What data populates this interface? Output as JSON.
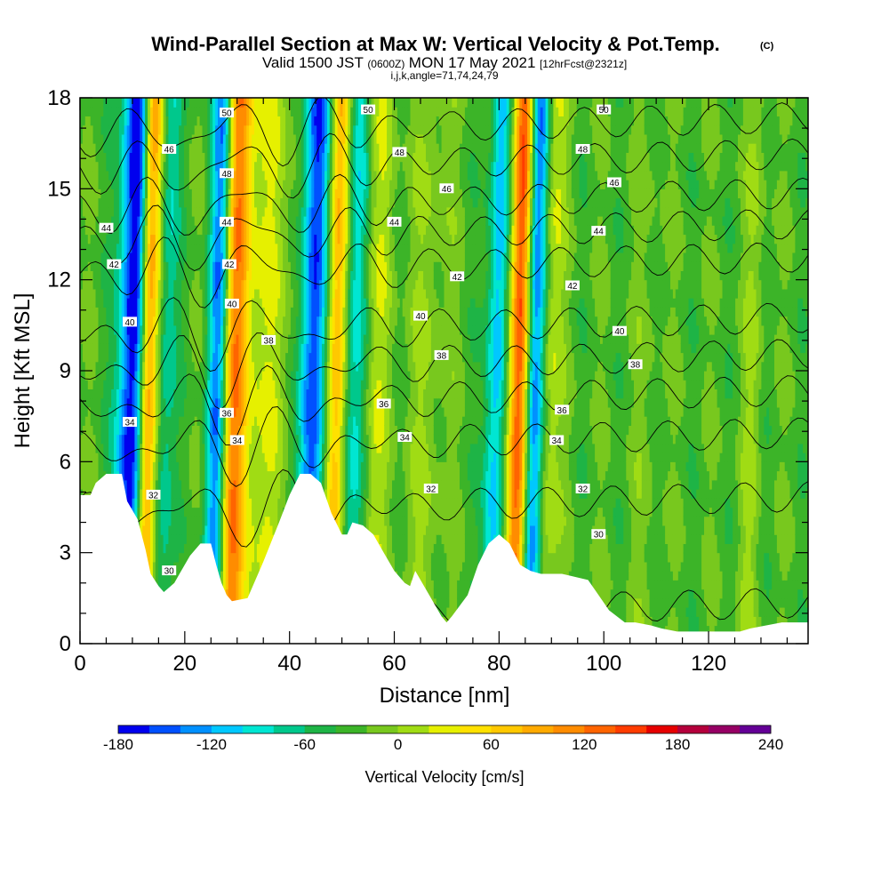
{
  "chart_data": {
    "type": "heatmap",
    "title": {
      "main": "Wind-Parallel Section at Max W: Vertical Velocity & Pot.Temp.",
      "copyright": "(C)",
      "line2_prefix": "Valid 1500 JST",
      "line2_zulu": "(0600Z)",
      "line2_date": "MON 17 May 2021",
      "line2_fcst": "[12hrFcst@2321z]",
      "line3": "i,j,k,angle=71,74,24,79"
    },
    "xlabel": "Distance [nm]",
    "ylabel": "Height [Kft MSL]",
    "xlim": [
      0,
      139
    ],
    "ylim": [
      0,
      18
    ],
    "x_ticks": [
      0,
      20,
      40,
      60,
      80,
      100,
      120
    ],
    "y_ticks": [
      0,
      3,
      6,
      9,
      12,
      15,
      18
    ],
    "colorbar": {
      "title": "Vertical Velocity [cm/s]",
      "min": -180,
      "max": 240,
      "step": 20,
      "tick_values": [
        -180,
        -120,
        -60,
        0,
        60,
        120,
        180,
        240
      ],
      "colors": [
        "#0000ee",
        "#0050ff",
        "#0090ff",
        "#00c8ff",
        "#00e6d2",
        "#00c88c",
        "#1eb446",
        "#3cb428",
        "#78c81e",
        "#a0dc14",
        "#e6f000",
        "#ffe100",
        "#ffc800",
        "#ffaa00",
        "#ff8c00",
        "#ff6400",
        "#ff3c00",
        "#e60000",
        "#b4003c",
        "#960064",
        "#640096"
      ]
    },
    "features": [
      {
        "x": 10,
        "w_peak": -180,
        "width": 3.0
      },
      {
        "x": 12.5,
        "w_peak": 190,
        "width": 2.0
      },
      {
        "x": 16,
        "w_peak": -55,
        "width": 2.0
      },
      {
        "x": 26,
        "w_peak": -130,
        "width": 2.0
      },
      {
        "x": 29,
        "w_peak": 120,
        "width": 2.5
      },
      {
        "x": 34,
        "w_peak": 45,
        "width": 6.0
      },
      {
        "x": 44,
        "w_peak": -140,
        "width": 2.5
      },
      {
        "x": 48.5,
        "w_peak": 110,
        "width": 2.0
      },
      {
        "x": 52,
        "w_peak": -70,
        "width": 2.5
      },
      {
        "x": 56,
        "w_peak": 40,
        "width": 3.0
      },
      {
        "x": 66,
        "w_peak": 25,
        "width": 4.0
      },
      {
        "x": 79,
        "w_peak": -90,
        "width": 2.0
      },
      {
        "x": 83.5,
        "w_peak": 170,
        "width": 2.0
      },
      {
        "x": 86.5,
        "w_peak": -140,
        "width": 2.0
      },
      {
        "x": 89,
        "w_peak": 55,
        "width": 2.5
      },
      {
        "x": 108,
        "w_peak": 10,
        "width": 3.0
      },
      {
        "x": 128,
        "w_peak": 25,
        "width": 2.0
      }
    ],
    "terrain_kft": [
      [
        0,
        4.9
      ],
      [
        2,
        4.9
      ],
      [
        3,
        5.3
      ],
      [
        5,
        5.6
      ],
      [
        8,
        5.6
      ],
      [
        9,
        4.7
      ],
      [
        11,
        4.1
      ],
      [
        12.5,
        3.1
      ],
      [
        13.5,
        2.3
      ],
      [
        15,
        1.9
      ],
      [
        16,
        1.7
      ],
      [
        18,
        2.0
      ],
      [
        19,
        2.3
      ],
      [
        21,
        2.9
      ],
      [
        23,
        3.3
      ],
      [
        25,
        3.3
      ],
      [
        26,
        2.6
      ],
      [
        27,
        2.0
      ],
      [
        28,
        1.6
      ],
      [
        29,
        1.4
      ],
      [
        32,
        1.5
      ],
      [
        35,
        2.7
      ],
      [
        38,
        4.0
      ],
      [
        40,
        4.9
      ],
      [
        42,
        5.6
      ],
      [
        44,
        5.6
      ],
      [
        46,
        5.3
      ],
      [
        48,
        4.3
      ],
      [
        50,
        3.6
      ],
      [
        51,
        3.6
      ],
      [
        52,
        4.0
      ],
      [
        54,
        3.9
      ],
      [
        56,
        3.6
      ],
      [
        58,
        3.0
      ],
      [
        60,
        2.4
      ],
      [
        62,
        2.0
      ],
      [
        63,
        1.9
      ],
      [
        64,
        2.4
      ],
      [
        65,
        2.1
      ],
      [
        67,
        1.5
      ],
      [
        69,
        0.9
      ],
      [
        70,
        0.7
      ],
      [
        71,
        0.9
      ],
      [
        74,
        1.6
      ],
      [
        76,
        2.6
      ],
      [
        78,
        3.3
      ],
      [
        80,
        3.6
      ],
      [
        82,
        3.3
      ],
      [
        84,
        2.6
      ],
      [
        86,
        2.4
      ],
      [
        88,
        2.3
      ],
      [
        92,
        2.3
      ],
      [
        97,
        2.1
      ],
      [
        99,
        1.6
      ],
      [
        101,
        1.1
      ],
      [
        104,
        0.7
      ],
      [
        106,
        0.7
      ],
      [
        109,
        0.6
      ],
      [
        111,
        0.5
      ],
      [
        114,
        0.4
      ],
      [
        120,
        0.4
      ],
      [
        126,
        0.4
      ],
      [
        128,
        0.5
      ],
      [
        134,
        0.7
      ],
      [
        139,
        0.7
      ]
    ],
    "theta_contours": [
      {
        "value": "30",
        "z_left": 0.8,
        "label_x": 17,
        "label_z": 2.4
      },
      {
        "value": "32",
        "z_left": 4.3,
        "label_x": 14,
        "label_z": 4.9
      },
      {
        "value": "34",
        "z_left": 6.4,
        "label_x": 30,
        "label_z": 6.7
      },
      {
        "value": "36",
        "z_left": 7.8,
        "label_x": 28,
        "label_z": 7.6
      },
      {
        "value": "38",
        "z_left": 9.0,
        "label_x": 36,
        "label_z": 10.0
      },
      {
        "value": "40",
        "z_left": 10.2,
        "label_x": 29,
        "label_z": 11.2
      },
      {
        "value": "42",
        "z_left": 12.2,
        "label_x": 28.5,
        "label_z": 12.5
      },
      {
        "value": "44",
        "z_left": 13.3,
        "label_x": 28,
        "label_z": 13.9
      },
      {
        "value": "46",
        "z_left": 14.3,
        "label_x": 17,
        "label_z": 15.6
      },
      {
        "value": "48",
        "z_left": 15.6,
        "label_x": 28,
        "label_z": 15.5
      },
      {
        "value": "50",
        "z_left": 16.8,
        "label_x": 28,
        "label_z": 17.5
      }
    ],
    "theta_labels": [
      {
        "text": "44",
        "x": 5,
        "z": 13.7
      },
      {
        "text": "42",
        "x": 6.5,
        "z": 12.5
      },
      {
        "text": "40",
        "x": 9.5,
        "z": 10.6
      },
      {
        "text": "34",
        "x": 9.5,
        "z": 7.3
      },
      {
        "text": "46",
        "x": 17,
        "z": 16.3
      },
      {
        "text": "48",
        "x": 28,
        "z": 15.5
      },
      {
        "text": "50",
        "x": 28,
        "z": 17.5
      },
      {
        "text": "44",
        "x": 28,
        "z": 13.9
      },
      {
        "text": "42",
        "x": 28.5,
        "z": 12.5
      },
      {
        "text": "40",
        "x": 29,
        "z": 11.2
      },
      {
        "text": "36",
        "x": 28,
        "z": 7.6
      },
      {
        "text": "34",
        "x": 30,
        "z": 6.7
      },
      {
        "text": "38",
        "x": 36,
        "z": 10.0
      },
      {
        "text": "32",
        "x": 14,
        "z": 4.9
      },
      {
        "text": "30",
        "x": 17,
        "z": 2.4
      },
      {
        "text": "50",
        "x": 55,
        "z": 17.6
      },
      {
        "text": "48",
        "x": 61,
        "z": 16.2
      },
      {
        "text": "46",
        "x": 70,
        "z": 15.0
      },
      {
        "text": "44",
        "x": 60,
        "z": 13.9
      },
      {
        "text": "42",
        "x": 72,
        "z": 12.1
      },
      {
        "text": "40",
        "x": 65,
        "z": 10.8
      },
      {
        "text": "38",
        "x": 69,
        "z": 9.5
      },
      {
        "text": "36",
        "x": 58,
        "z": 7.9
      },
      {
        "text": "34",
        "x": 62,
        "z": 6.8
      },
      {
        "text": "32",
        "x": 67,
        "z": 5.1
      },
      {
        "text": "50",
        "x": 100,
        "z": 17.6
      },
      {
        "text": "48",
        "x": 96,
        "z": 16.3
      },
      {
        "text": "46",
        "x": 102,
        "z": 15.2
      },
      {
        "text": "44",
        "x": 99,
        "z": 13.6
      },
      {
        "text": "42",
        "x": 94,
        "z": 11.8
      },
      {
        "text": "40",
        "x": 103,
        "z": 10.3
      },
      {
        "text": "38",
        "x": 106,
        "z": 9.2
      },
      {
        "text": "36",
        "x": 92,
        "z": 7.7
      },
      {
        "text": "34",
        "x": 91,
        "z": 6.7
      },
      {
        "text": "32",
        "x": 96,
        "z": 5.1
      },
      {
        "text": "30",
        "x": 99,
        "z": 3.6
      }
    ]
  }
}
